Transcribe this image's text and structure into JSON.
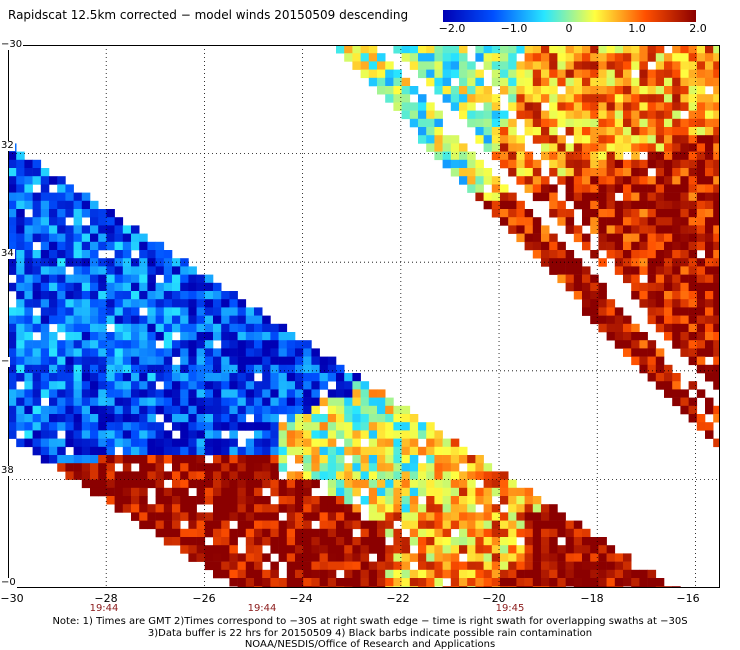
{
  "title": "Rapidscat 12.5km corrected − model winds 20150509 descending",
  "colorbar": {
    "labels": [
      "−2.0",
      "−1.0",
      "0",
      "1.0",
      "2.0"
    ],
    "values": [
      -2.0,
      -1.0,
      0,
      1.0,
      2.0
    ],
    "colors": [
      "#0000b4",
      "#0050ff",
      "#28e6ff",
      "#ffff40",
      "#ff5000",
      "#8b0000"
    ]
  },
  "map": {
    "lat_range": [
      -40,
      -30
    ],
    "lon_range": [
      -30,
      -15.5
    ],
    "lat_labels": [
      {
        "value": -30,
        "label": "−30"
      },
      {
        "value": -32,
        "label": "32"
      },
      {
        "value": -34,
        "label": "34"
      },
      {
        "value": -36,
        "label": "−"
      },
      {
        "value": -38,
        "label": "38"
      },
      {
        "value": -40,
        "label": "−0"
      }
    ],
    "lon_labels": [
      {
        "value": -30,
        "label": "−30"
      },
      {
        "value": -28,
        "label": "−28"
      },
      {
        "value": -26,
        "label": "−26"
      },
      {
        "value": -24,
        "label": "−24"
      },
      {
        "value": -22,
        "label": "−22"
      },
      {
        "value": -20,
        "label": "−20"
      },
      {
        "value": -18,
        "label": "−18"
      },
      {
        "value": -16,
        "label": "−16"
      }
    ],
    "time_labels": [
      {
        "lon": -28,
        "label": "19:44"
      },
      {
        "lon": -25,
        "label": "19:44"
      },
      {
        "lon": -20,
        "label": "19:45"
      }
    ],
    "swaths": [
      {
        "name": "lower-left",
        "regions": [
          {
            "lon": [
              -30,
              -26.5
            ],
            "lat": [
              -36.2,
              -31.2
            ],
            "mean": -1.2
          },
          {
            "lon": [
              -26.5,
              -23
            ],
            "lat": [
              -37.5,
              -34.3
            ],
            "mean": -1.4
          },
          {
            "lon": [
              -24.5,
              -21.5
            ],
            "lat": [
              -38.6,
              -36.5
            ],
            "mean": 0.2
          },
          {
            "lon": [
              -21.5,
              -19.5
            ],
            "lat": [
              -39.6,
              -37.8
            ],
            "mean": 0.9
          },
          {
            "lon": [
              -25.5,
              -23
            ],
            "lat": [
              -39.4,
              -38.0
            ],
            "mean": 2.0
          },
          {
            "lon": [
              -20,
              -16
            ],
            "lat": [
              -40,
              -38.6
            ],
            "mean": 2.0
          }
        ]
      },
      {
        "name": "upper-right",
        "regions": [
          {
            "lon": [
              -22.5,
              -19.5
            ],
            "lat": [
              -31.5,
              -30.2
            ],
            "mean": 0.0
          },
          {
            "lon": [
              -20,
              -17
            ],
            "lat": [
              -32.5,
              -30.2
            ],
            "mean": 1.0
          },
          {
            "lon": [
              -19,
              -16
            ],
            "lat": [
              -34.5,
              -32.0
            ],
            "mean": 1.7
          },
          {
            "lon": [
              -17.5,
              -15.5
            ],
            "lat": [
              -36.5,
              -33.5
            ],
            "mean": 1.8
          }
        ]
      }
    ]
  },
  "notes": [
    "Note: 1) Times are GMT 2)Times correspond to −30S at right swath edge − time is right swath for overlapping swaths at −30S",
    "3)Data buffer is 22 hrs for 20150509 4) Black barbs indicate possible rain contamination",
    "NOAA/NESDIS/Office of Research and Applications"
  ]
}
